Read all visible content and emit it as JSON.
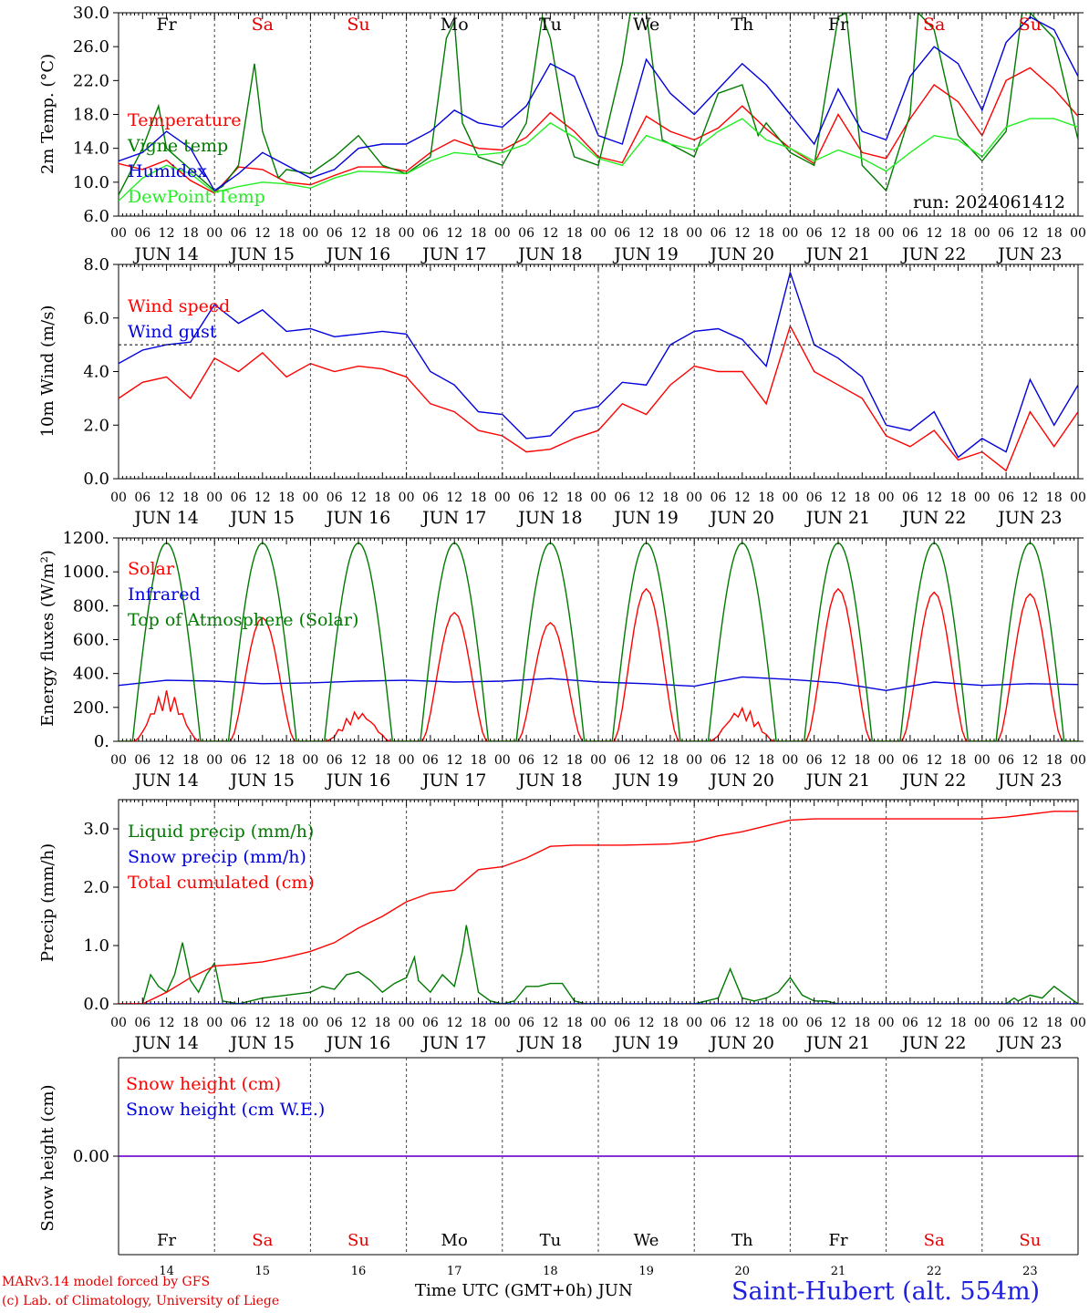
{
  "run_label": "run: 2024061412",
  "day_tags": [
    "Fr",
    "Sa",
    "Su",
    "Mo",
    "Tu",
    "We",
    "Th",
    "Fr",
    "Sa",
    "Su"
  ],
  "day_tag_colors": [
    "#000000",
    "#e00000",
    "#e00000",
    "#000000",
    "#000000",
    "#000000",
    "#000000",
    "#000000",
    "#e00000",
    "#e00000"
  ],
  "date_labels": [
    "JUN 14",
    "JUN 15",
    "JUN 16",
    "JUN 17",
    "JUN 18",
    "JUN 19",
    "JUN 20",
    "JUN 21",
    "JUN 22",
    "JUN 23"
  ],
  "hour_labels": [
    "00",
    "06",
    "12",
    "18"
  ],
  "hour_label_end": "00",
  "bottom_day_numbers": [
    "14",
    "15",
    "16",
    "17",
    "18",
    "19",
    "20",
    "21",
    "22",
    "23"
  ],
  "footer": {
    "model_line": "MARv3.14 model forced by GFS",
    "credit_line": "(c) Lab. of Climatology, University of Liege",
    "time_axis_label": "Time UTC (GMT+0h) JUN",
    "station": "Saint-Hubert (alt. 554m)"
  },
  "chart_data": [
    {
      "type": "line",
      "ylabel": "2m Temp. (°C)",
      "ylim": [
        6,
        30
      ],
      "yticks": [
        "6.0",
        "10.0",
        "14.0",
        "18.0",
        "22.0",
        "26.0",
        "30.0"
      ],
      "xlim_hours": [
        0,
        240
      ],
      "series": [
        {
          "name": "Temperature",
          "color": "#ff0000",
          "x": [
            0,
            6,
            12,
            18,
            24,
            30,
            36,
            42,
            48,
            54,
            60,
            66,
            72,
            78,
            84,
            90,
            96,
            102,
            108,
            114,
            120,
            126,
            132,
            138,
            144,
            150,
            156,
            162,
            168,
            174,
            180,
            186,
            192,
            198,
            204,
            210,
            216,
            222,
            228,
            234,
            240
          ],
          "values": [
            12.2,
            11.5,
            12.6,
            10.2,
            8.7,
            11.8,
            11.5,
            10.0,
            9.7,
            10.8,
            11.8,
            11.8,
            11.3,
            13.5,
            15.0,
            14.0,
            13.8,
            15.3,
            18.2,
            16.0,
            13.0,
            12.3,
            17.8,
            16.0,
            15.0,
            16.4,
            19.0,
            16.3,
            14.0,
            12.2,
            18.0,
            13.5,
            12.8,
            17.5,
            21.5,
            19.5,
            15.5,
            22.0,
            23.5,
            21.0,
            17.8
          ]
        },
        {
          "name": "Vigne temp",
          "color": "#007a00",
          "x": [
            0,
            6,
            10,
            12,
            18,
            24,
            26,
            30,
            34,
            36,
            40,
            42,
            48,
            54,
            60,
            66,
            72,
            78,
            82,
            84,
            86,
            90,
            96,
            102,
            106,
            108,
            112,
            114,
            120,
            126,
            128,
            132,
            136,
            138,
            144,
            150,
            156,
            160,
            162,
            168,
            174,
            180,
            182,
            186,
            192,
            198,
            200,
            204,
            210,
            216,
            222,
            226,
            228,
            234,
            240
          ],
          "values": [
            8.5,
            14.0,
            19.0,
            14.0,
            11.5,
            9.0,
            9.5,
            12.0,
            24.0,
            16.0,
            10.5,
            11.5,
            11.0,
            13.0,
            15.5,
            12.0,
            11.0,
            13.0,
            27.0,
            29.0,
            17.0,
            13.0,
            12.0,
            17.0,
            29.5,
            27.0,
            16.0,
            13.0,
            12.0,
            24.0,
            30.0,
            30.0,
            15.0,
            14.5,
            13.0,
            20.5,
            21.5,
            15.5,
            17.0,
            13.5,
            12.0,
            29.5,
            30.0,
            12.0,
            9.0,
            18.0,
            30.0,
            28.0,
            15.5,
            12.5,
            16.0,
            30.0,
            30.0,
            27.0,
            15.0
          ]
        },
        {
          "name": "Humidex",
          "color": "#0000dd",
          "x": [
            0,
            6,
            12,
            18,
            24,
            30,
            36,
            42,
            48,
            54,
            60,
            66,
            72,
            78,
            84,
            90,
            96,
            102,
            108,
            114,
            120,
            126,
            132,
            138,
            144,
            150,
            156,
            162,
            168,
            174,
            180,
            186,
            192,
            198,
            204,
            210,
            216,
            222,
            228,
            234,
            240
          ],
          "values": [
            12.5,
            13.5,
            16.0,
            14.0,
            9.0,
            11.0,
            13.5,
            12.0,
            10.5,
            11.5,
            14.0,
            14.5,
            14.5,
            16.0,
            18.5,
            17.0,
            16.5,
            19.0,
            24.0,
            22.5,
            15.5,
            14.5,
            24.5,
            20.5,
            18.0,
            21.0,
            24.0,
            21.5,
            18.0,
            14.5,
            21.0,
            16.0,
            15.0,
            22.5,
            26.0,
            24.0,
            18.5,
            26.5,
            29.5,
            28.0,
            22.5
          ]
        },
        {
          "name": "DewPoint Temp",
          "color": "#22ee22",
          "x": [
            0,
            6,
            12,
            18,
            24,
            30,
            36,
            42,
            48,
            54,
            60,
            66,
            72,
            78,
            84,
            90,
            96,
            102,
            108,
            114,
            120,
            126,
            132,
            138,
            144,
            150,
            156,
            162,
            168,
            174,
            180,
            186,
            192,
            198,
            204,
            210,
            216,
            222,
            228,
            234,
            240
          ],
          "values": [
            7.8,
            10.5,
            12.0,
            11.0,
            8.8,
            9.5,
            10.0,
            9.8,
            9.3,
            10.5,
            11.3,
            11.2,
            11.0,
            12.5,
            13.5,
            13.2,
            13.5,
            14.5,
            17.0,
            15.3,
            12.8,
            12.0,
            15.5,
            14.5,
            13.8,
            16.0,
            17.5,
            15.0,
            14.0,
            12.5,
            13.8,
            12.8,
            11.3,
            13.5,
            15.5,
            15.0,
            13.0,
            16.5,
            17.5,
            17.5,
            16.5
          ]
        }
      ]
    },
    {
      "type": "line",
      "ylabel": "10m Wind (m/s)",
      "ylim": [
        0,
        8
      ],
      "yticks": [
        "0.0",
        "2.0",
        "4.0",
        "6.0",
        "8.0"
      ],
      "reference_line": 5.0,
      "xlim_hours": [
        0,
        240
      ],
      "series": [
        {
          "name": "Wind speed",
          "color": "#ff0000",
          "x": [
            0,
            6,
            12,
            18,
            24,
            30,
            36,
            42,
            48,
            54,
            60,
            66,
            72,
            78,
            84,
            90,
            96,
            102,
            108,
            114,
            120,
            126,
            132,
            138,
            144,
            150,
            156,
            162,
            168,
            174,
            180,
            186,
            192,
            198,
            204,
            210,
            216,
            222,
            228,
            234,
            240
          ],
          "values": [
            3.0,
            3.6,
            3.8,
            3.0,
            4.5,
            4.0,
            4.7,
            3.8,
            4.3,
            4.0,
            4.2,
            4.1,
            3.8,
            2.8,
            2.5,
            1.8,
            1.6,
            1.0,
            1.1,
            1.5,
            1.8,
            2.8,
            2.4,
            3.5,
            4.2,
            4.0,
            4.0,
            2.8,
            5.7,
            4.0,
            3.5,
            3.0,
            1.6,
            1.2,
            1.8,
            0.7,
            1.0,
            0.3,
            2.5,
            1.2,
            2.5
          ]
        },
        {
          "name": "Wind gust",
          "color": "#0000dd",
          "x": [
            0,
            6,
            12,
            18,
            24,
            30,
            36,
            42,
            48,
            54,
            60,
            66,
            72,
            78,
            84,
            90,
            96,
            102,
            108,
            114,
            120,
            126,
            132,
            138,
            144,
            150,
            156,
            162,
            168,
            174,
            180,
            186,
            192,
            198,
            204,
            210,
            216,
            222,
            228,
            234,
            240
          ],
          "values": [
            4.3,
            4.8,
            5.0,
            5.1,
            6.5,
            5.8,
            6.3,
            5.5,
            5.6,
            5.3,
            5.4,
            5.5,
            5.4,
            4.0,
            3.5,
            2.5,
            2.4,
            1.5,
            1.6,
            2.5,
            2.7,
            3.6,
            3.5,
            5.0,
            5.5,
            5.6,
            5.2,
            4.2,
            7.7,
            5.0,
            4.5,
            3.8,
            2.0,
            1.8,
            2.5,
            0.8,
            1.5,
            1.0,
            3.7,
            2.0,
            3.5
          ]
        }
      ]
    },
    {
      "type": "line",
      "ylabel": "Energy fluxes (W/m²)",
      "ylim": [
        0,
        1200
      ],
      "yticks": [
        "0.",
        "200.",
        "400.",
        "600.",
        "800.",
        "1000.",
        "1200."
      ],
      "xlim_hours": [
        0,
        240
      ],
      "series": [
        {
          "name": "Solar",
          "color": "#ff0000",
          "daily_peak": [
            300,
            730,
            180,
            760,
            700,
            900,
            200,
            900,
            880,
            870
          ]
        },
        {
          "name": "Infrared",
          "color": "#0000dd",
          "x": [
            0,
            12,
            24,
            36,
            48,
            60,
            72,
            84,
            96,
            108,
            120,
            132,
            144,
            156,
            168,
            180,
            192,
            204,
            216,
            228,
            240
          ],
          "values": [
            330,
            360,
            355,
            340,
            345,
            355,
            360,
            350,
            355,
            370,
            350,
            340,
            325,
            380,
            365,
            345,
            300,
            350,
            330,
            340,
            335
          ]
        },
        {
          "name": "Top of Atmosphere (Solar)",
          "color": "#007a00",
          "daily_peak": 1170
        }
      ]
    },
    {
      "type": "line",
      "ylabel": "Precip (mm/h)",
      "ylim": [
        0,
        3.5
      ],
      "yticks": [
        "0.0",
        "1.0",
        "2.0",
        "3.0"
      ],
      "xlim_hours": [
        0,
        240
      ],
      "series": [
        {
          "name": "Liquid precip (mm/h)",
          "color": "#007a00",
          "x": [
            0,
            6,
            8,
            10,
            12,
            14,
            16,
            18,
            20,
            22,
            24,
            26,
            30,
            36,
            42,
            48,
            51,
            54,
            57,
            60,
            63,
            66,
            69,
            72,
            74,
            75,
            78,
            81,
            84,
            86,
            87,
            90,
            93,
            96,
            99,
            102,
            105,
            108,
            111,
            114,
            117,
            120,
            126,
            132,
            138,
            144,
            150,
            153,
            156,
            159,
            162,
            165,
            168,
            171,
            174,
            177,
            180,
            186,
            192,
            198,
            204,
            210,
            216,
            222,
            224,
            225,
            228,
            231,
            234,
            237,
            240
          ],
          "values": [
            0,
            0,
            0.5,
            0.3,
            0.2,
            0.5,
            1.05,
            0.4,
            0.2,
            0.5,
            0.7,
            0.05,
            0.0,
            0.1,
            0.15,
            0.2,
            0.3,
            0.25,
            0.5,
            0.55,
            0.4,
            0.2,
            0.35,
            0.45,
            0.8,
            0.4,
            0.2,
            0.5,
            0.3,
            0.9,
            1.35,
            0.2,
            0.05,
            0.0,
            0.05,
            0.3,
            0.3,
            0.35,
            0.35,
            0.05,
            0.0,
            0.0,
            0.0,
            0.0,
            0.0,
            0.0,
            0.1,
            0.6,
            0.1,
            0.05,
            0.1,
            0.2,
            0.45,
            0.15,
            0.05,
            0.05,
            0.0,
            0.0,
            0.0,
            0.0,
            0.0,
            0.0,
            0.0,
            0.0,
            0.1,
            0.05,
            0.15,
            0.1,
            0.3,
            0.15,
            0.0
          ]
        },
        {
          "name": "Snow precip (mm/h)",
          "color": "#0000dd",
          "x": [
            0,
            240
          ],
          "values": [
            0,
            0
          ]
        },
        {
          "name": "Total cumulated (cm)",
          "color": "#ff0000",
          "x": [
            0,
            6,
            12,
            18,
            24,
            30,
            36,
            42,
            48,
            54,
            60,
            66,
            72,
            78,
            84,
            90,
            96,
            102,
            108,
            114,
            120,
            126,
            132,
            138,
            144,
            150,
            156,
            162,
            168,
            174,
            180,
            186,
            192,
            198,
            204,
            210,
            216,
            222,
            228,
            234,
            240
          ],
          "values": [
            0,
            0,
            0.2,
            0.45,
            0.65,
            0.68,
            0.72,
            0.8,
            0.9,
            1.05,
            1.3,
            1.5,
            1.75,
            1.9,
            1.95,
            2.3,
            2.35,
            2.5,
            2.7,
            2.72,
            2.72,
            2.72,
            2.73,
            2.74,
            2.78,
            2.88,
            2.95,
            3.05,
            3.15,
            3.17,
            3.17,
            3.17,
            3.17,
            3.17,
            3.17,
            3.17,
            3.17,
            3.2,
            3.25,
            3.3,
            3.3
          ]
        }
      ]
    },
    {
      "type": "line",
      "ylabel": "Snow height (cm)",
      "yticks": [
        "0.00"
      ],
      "xlim_hours": [
        0,
        240
      ],
      "series": [
        {
          "name": "Snow height (cm)",
          "color": "#ff0000",
          "x": [
            0,
            240
          ],
          "values": [
            0,
            0
          ]
        },
        {
          "name": "Snow height (cm W.E.)",
          "color": "#0000dd",
          "x": [
            0,
            240
          ],
          "values": [
            0,
            0
          ]
        }
      ]
    }
  ]
}
